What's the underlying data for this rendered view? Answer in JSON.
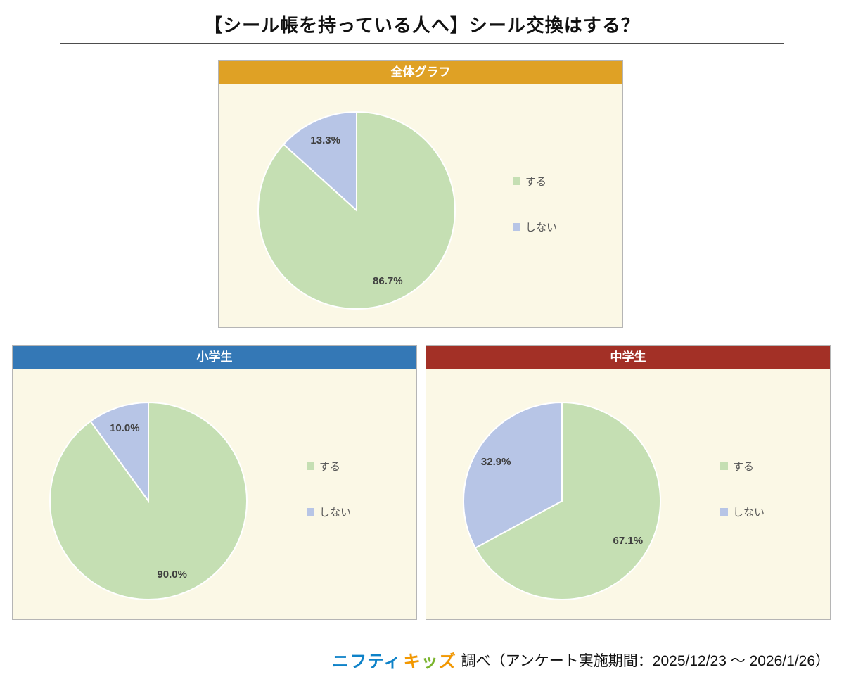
{
  "page": {
    "title": "【シール帳を持っている人へ】シール交換はする？",
    "footer": {
      "logo_nifty": "ニフティ",
      "logo_kids_chars": [
        {
          "ch": "キ",
          "color": "#f39800"
        },
        {
          "ch": "ッ",
          "color": "#7ab52b"
        },
        {
          "ch": "ズ",
          "color": "#f39800"
        }
      ],
      "text": "調べ（アンケート実施期間：2025/12/23 ～ 2026/1/26）"
    }
  },
  "colors": {
    "slice_suru": "#c5dfb3",
    "slice_shinai": "#b7c5e6",
    "panel_bg": "#fbf8e6",
    "panel_border": "#b5b5b5",
    "header_overall": "#dfa125",
    "header_elementary": "#3478b6",
    "header_junior": "#a33026"
  },
  "chart_data": [
    {
      "type": "pie",
      "title": "全体グラフ",
      "header_color": "#dfa125",
      "labels": [
        "する",
        "しない"
      ],
      "values": [
        86.7,
        13.3
      ],
      "value_labels": [
        "86.7%",
        "13.3%"
      ],
      "colors": [
        "#c5dfb3",
        "#b7c5e6"
      ],
      "legend_position": "right",
      "start_angle_deg": 0,
      "direction": "clockwise"
    },
    {
      "type": "pie",
      "title": "小学生",
      "header_color": "#3478b6",
      "labels": [
        "する",
        "しない"
      ],
      "values": [
        90.0,
        10.0
      ],
      "value_labels": [
        "90.0%",
        "10.0%"
      ],
      "colors": [
        "#c5dfb3",
        "#b7c5e6"
      ],
      "legend_position": "right",
      "start_angle_deg": 0,
      "direction": "clockwise"
    },
    {
      "type": "pie",
      "title": "中学生",
      "header_color": "#a33026",
      "labels": [
        "する",
        "しない"
      ],
      "values": [
        67.1,
        32.9
      ],
      "value_labels": [
        "67.1%",
        "32.9%"
      ],
      "colors": [
        "#c5dfb3",
        "#b7c5e6"
      ],
      "legend_position": "right",
      "start_angle_deg": 0,
      "direction": "clockwise"
    }
  ]
}
